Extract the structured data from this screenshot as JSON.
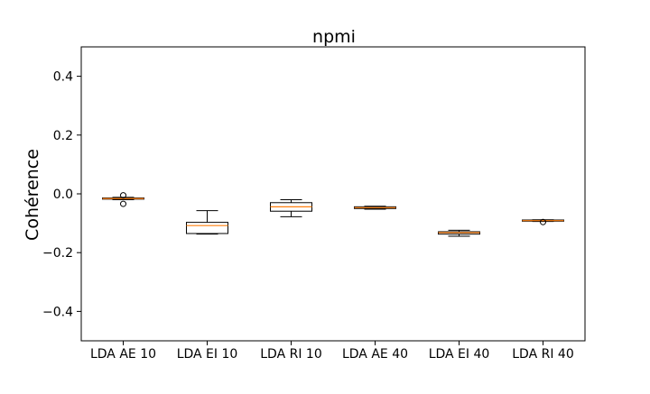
{
  "chart_data": {
    "type": "boxplot",
    "title": "npmi",
    "xlabel": "",
    "ylabel": "Cohérence",
    "ylim": [
      -0.5,
      0.5
    ],
    "yticks": [
      -0.4,
      -0.2,
      0.0,
      0.2,
      0.4
    ],
    "ytick_labels": [
      "−0.4",
      "−0.2",
      "0.0",
      "0.2",
      "0.4"
    ],
    "grid": false,
    "categories": [
      "LDA AE 10",
      "LDA EI 10",
      "LDA RI 10",
      "LDA AE 40",
      "LDA EI 40",
      "LDA RI 40"
    ],
    "boxes": [
      {
        "label": "LDA AE 10",
        "whisker_low": -0.02,
        "q1": -0.018,
        "median": -0.016,
        "q3": -0.014,
        "whisker_high": -0.012,
        "fliers": [
          -0.005,
          -0.034
        ]
      },
      {
        "label": "LDA EI 10",
        "whisker_low": -0.137,
        "q1": -0.135,
        "median": -0.108,
        "q3": -0.097,
        "whisker_high": -0.057,
        "fliers": []
      },
      {
        "label": "LDA RI 10",
        "whisker_low": -0.078,
        "q1": -0.059,
        "median": -0.044,
        "q3": -0.03,
        "whisker_high": -0.02,
        "fliers": []
      },
      {
        "label": "LDA AE 40",
        "whisker_low": -0.052,
        "q1": -0.05,
        "median": -0.047,
        "q3": -0.044,
        "whisker_high": -0.042,
        "fliers": []
      },
      {
        "label": "LDA EI 40",
        "whisker_low": -0.144,
        "q1": -0.137,
        "median": -0.132,
        "q3": -0.129,
        "whisker_high": -0.124,
        "fliers": []
      },
      {
        "label": "LDA RI 40",
        "whisker_low": -0.094,
        "q1": -0.093,
        "median": -0.091,
        "q3": -0.089,
        "whisker_high": -0.088,
        "fliers": [
          -0.096
        ]
      }
    ],
    "colors": {
      "box": "#000000",
      "median": "#ff7f0e",
      "flier": "#000000",
      "axes": "#000000"
    }
  }
}
